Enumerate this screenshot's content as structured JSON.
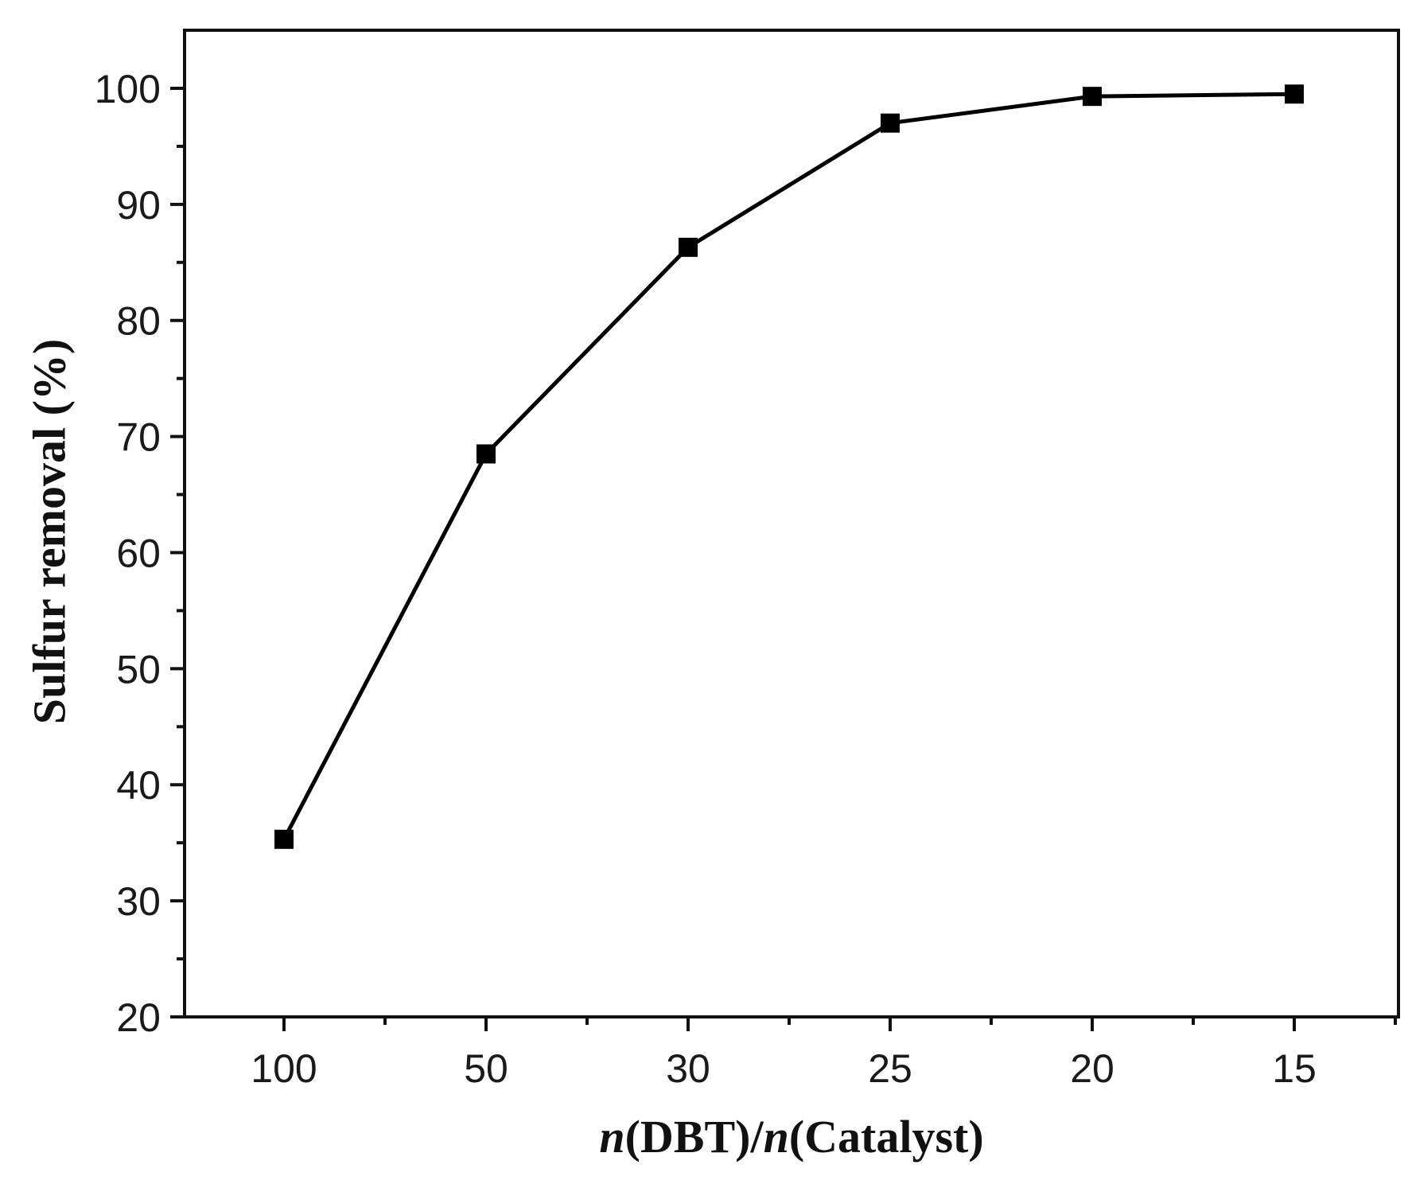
{
  "chart_data": {
    "type": "line",
    "title": "",
    "x_axis": {
      "label_parts": [
        {
          "text": "n",
          "italic": true
        },
        {
          "text": "(DBT)/",
          "italic": false
        },
        {
          "text": "n",
          "italic": true
        },
        {
          "text": "(Catalyst)",
          "italic": false
        }
      ],
      "categories": [
        "100",
        "50",
        "30",
        "25",
        "20",
        "15"
      ],
      "scale": "categorical"
    },
    "y_axis": {
      "label": "Sulfur removal (%)",
      "ylim": [
        20,
        105
      ],
      "ticks": [
        20,
        30,
        40,
        50,
        60,
        70,
        80,
        90,
        100
      ]
    },
    "series": [
      {
        "color": "#000000",
        "marker": "square",
        "x": [
          "100",
          "50",
          "30",
          "25",
          "20",
          "15"
        ],
        "y": [
          35.3,
          68.5,
          86.3,
          97.0,
          99.3,
          99.5
        ]
      }
    ],
    "grid": false,
    "legend": "none",
    "minor_ticks": true
  }
}
